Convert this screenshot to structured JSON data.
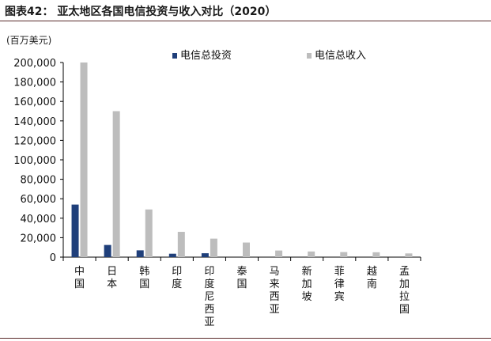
{
  "figure": {
    "title": "图表42： 亚太地区各国电信投资与收入对比（2020）"
  },
  "chart_data": {
    "type": "bar",
    "title": "图表42： 亚太地区各国电信投资与收入对比（2020）",
    "unit_label": "(百万美元)",
    "categories": [
      "中国",
      "日本",
      "韩国",
      "印度",
      "印度尼西亚",
      "泰国",
      "马来西亚",
      "新加坡",
      "菲律宾",
      "越南",
      "孟加拉国"
    ],
    "series": [
      {
        "name": "电信总投资",
        "color": "#1f3f7a",
        "values": [
          54000,
          12500,
          7000,
          3500,
          4000,
          0,
          0,
          0,
          0,
          0,
          0
        ]
      },
      {
        "name": "电信总收入",
        "color": "#bdbdbd",
        "values": [
          200000,
          150000,
          49000,
          26000,
          19000,
          15000,
          6800,
          5800,
          5200,
          5000,
          3800
        ]
      }
    ],
    "ylim": [
      0,
      200000
    ],
    "yticks": [
      "0",
      "20,000",
      "40,000",
      "60,000",
      "80,000",
      "100,000",
      "120,000",
      "140,000",
      "160,000",
      "180,000",
      "200,000"
    ],
    "grid": false,
    "legend_position": "top"
  }
}
